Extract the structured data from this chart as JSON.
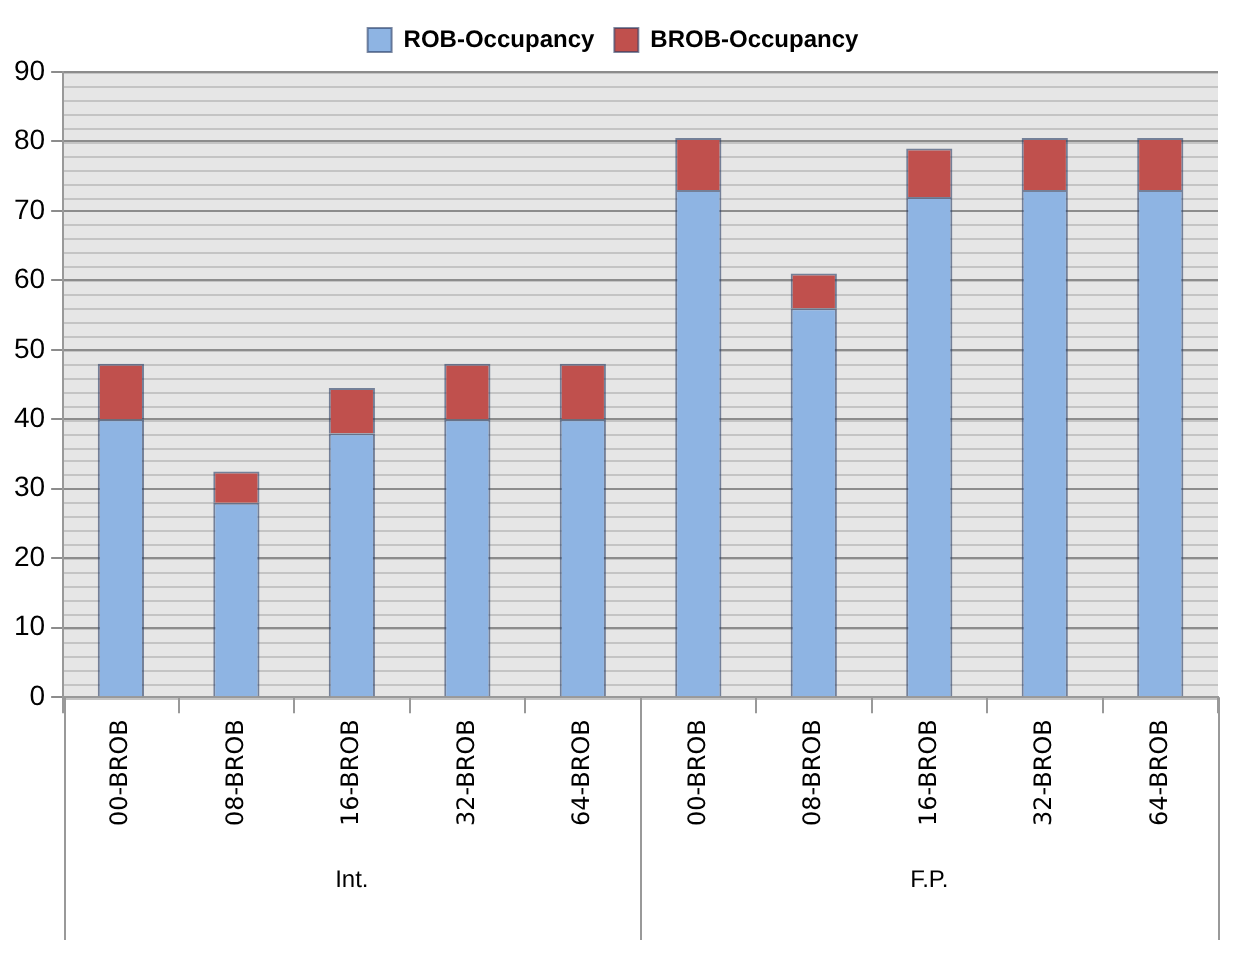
{
  "chart_data": {
    "type": "bar",
    "stacked": true,
    "categories": [
      "00-BROB",
      "08-BROB",
      "16-BROB",
      "32-BROB",
      "64-BROB",
      "00-BROB",
      "08-BROB",
      "16-BROB",
      "32-BROB",
      "64-BROB"
    ],
    "series": [
      {
        "name": "ROB-Occupancy",
        "color": "#8eb4e3",
        "values": [
          40,
          28,
          38,
          40,
          40,
          73,
          56,
          72,
          73,
          73
        ]
      },
      {
        "name": "BROB-Occupancy",
        "color": "#c0504d",
        "values": [
          8,
          4.5,
          6.5,
          8,
          8,
          7.5,
          5,
          7,
          7.5,
          7.5
        ]
      }
    ],
    "ylim": [
      0,
      90
    ],
    "yticks": [
      0,
      10,
      20,
      30,
      40,
      50,
      60,
      70,
      80,
      90
    ],
    "grid": "y",
    "legend": "top",
    "annotations": [
      "Int.",
      "F.P."
    ]
  }
}
